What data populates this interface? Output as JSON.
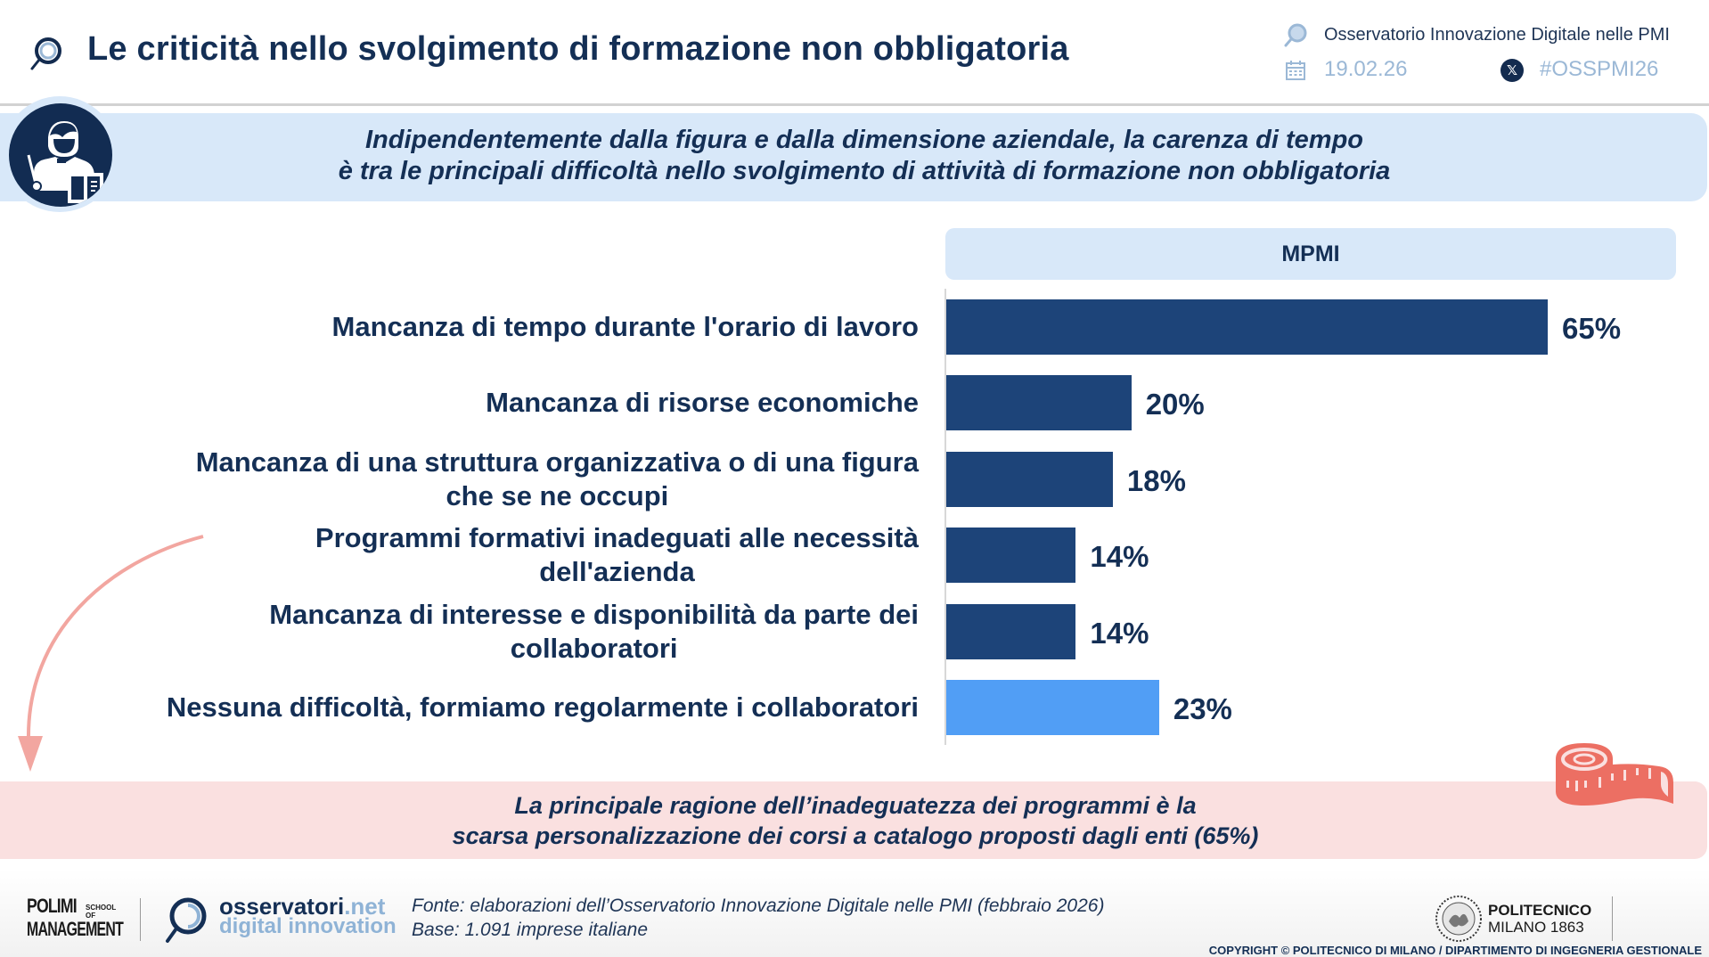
{
  "header": {
    "title": "Le criticità nello svolgimento di formazione non obbligatoria",
    "observatory": "Osservatorio Innovazione Digitale nelle PMI",
    "date": "19.02.26",
    "hashtag": "#OSSPMI26",
    "icons": {
      "title": "magnifier-icon",
      "observatory": "magnifier-icon",
      "date": "calendar-icon",
      "social": "x-logo-icon"
    }
  },
  "banner": {
    "line1": "Indipendentemente dalla figura e dalla dimensione aziendale, la carenza di tempo",
    "line2": "è tra le principali difficoltà nello svolgimento di attività di formazione non obbligatoria",
    "icon": "teacher-icon"
  },
  "chart_data": {
    "type": "bar",
    "orientation": "horizontal",
    "series": [
      {
        "name": "MPMI",
        "values": [
          65,
          20,
          18,
          14,
          14,
          23
        ]
      }
    ],
    "column_header": "MPMI",
    "categories": [
      "Mancanza di tempo durante l'orario di lavoro",
      "Mancanza di risorse economiche",
      "Mancanza di una struttura organizzativa o di una figura che se ne occupi",
      "Programmi formativi inadeguati alle necessità dell'azienda",
      "Mancanza di interesse e disponibilità da parte dei collaboratori",
      "Nessuna difficoltà, formiamo regolarmente i collaboratori"
    ],
    "category_lines": [
      [
        "Mancanza di tempo durante l'orario di lavoro"
      ],
      [
        "Mancanza di risorse economiche"
      ],
      [
        "Mancanza di una struttura organizzativa o di una figura",
        "che se ne occupi"
      ],
      [
        "Programmi formativi inadeguati alle necessità",
        "dell'azienda"
      ],
      [
        "Mancanza di interesse e disponibilità da parte dei",
        "collaboratori"
      ],
      [
        "Nessuna difficoltà, formiamo regolarmente i collaboratori"
      ]
    ],
    "value_labels": [
      "65%",
      "20%",
      "18%",
      "14%",
      "14%",
      "23%"
    ],
    "unit": "%",
    "xlim": [
      0,
      65
    ],
    "bar_colors": [
      "#1d4479",
      "#1d4479",
      "#1d4479",
      "#1d4479",
      "#1d4479",
      "#519ef5"
    ],
    "grid": false,
    "title": "",
    "xlabel": "",
    "ylabel": ""
  },
  "callout": {
    "line1": "La principale ragione dell’inadeguatezza dei programmi è la",
    "line2": "scarsa personalizzazione dei corsi a catalogo proposti dagli enti (65%)",
    "icon": "measuring-tape-icon",
    "arrow": "curved-arrow-icon"
  },
  "footer": {
    "polimi_line1": "POLIMI",
    "polimi_school": "SCHOOL OF",
    "polimi_line2": "MANAGEMENT",
    "obs_logo_main": "osservatori",
    "obs_logo_tld": ".net",
    "obs_logo_sub": "digital innovation",
    "source": "Fonte: elaborazioni dell’Osservatorio Innovazione Digitale nelle PMI (febbraio 2026)",
    "base": "Base: 1.091 imprese italiane",
    "politecnico_line1": "POLITECNICO",
    "politecnico_line2": "MILANO 1863",
    "copyright": "COPYRIGHT © POLITECNICO DI MILANO / DIPARTIMENTO DI INGEGNERIA GESTIONALE"
  },
  "colors": {
    "navy": "#142f55",
    "bar_primary": "#1d4479",
    "bar_highlight": "#519ef5",
    "banner_bg": "#d8e8f9",
    "callout_bg": "#fae0e0",
    "accent_coral": "#ec6f63",
    "arrow": "#f2a6a0",
    "muted_blue": "#9bb8d6"
  }
}
